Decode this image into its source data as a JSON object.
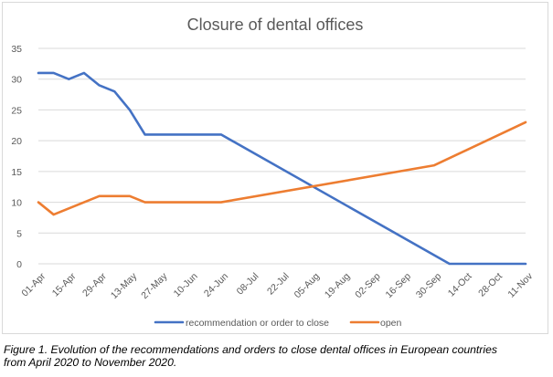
{
  "chart_data": {
    "type": "line",
    "title": "Closure of dental offices",
    "xlabel": "",
    "ylabel": "",
    "ylim": [
      0,
      35
    ],
    "yticks": [
      0,
      5,
      10,
      15,
      20,
      25,
      30,
      35
    ],
    "grid": true,
    "legend_position": "bottom",
    "x": [
      "01-Apr",
      "08-Apr",
      "15-Apr",
      "22-Apr",
      "29-Apr",
      "06-May",
      "13-May",
      "20-May",
      "27-May",
      "03-Jun",
      "10-Jun",
      "17-Jun",
      "24-Jun",
      "01-Jul",
      "08-Jul",
      "15-Jul",
      "22-Jul",
      "29-Jul",
      "05-Aug",
      "12-Aug",
      "19-Aug",
      "26-Aug",
      "02-Sep",
      "09-Sep",
      "16-Sep",
      "23-Sep",
      "30-Sep",
      "07-Oct",
      "14-Oct",
      "21-Oct",
      "28-Oct",
      "04-Nov",
      "11-Nov"
    ],
    "x_tick_labels": [
      "01-Apr",
      "15-Apr",
      "29-Apr",
      "13-May",
      "27-May",
      "10-Jun",
      "24-Jun",
      "08-Jul",
      "22-Jul",
      "05-Aug",
      "19-Aug",
      "02-Sep",
      "16-Sep",
      "30-Sep",
      "14-Oct",
      "28-Oct",
      "11-Nov"
    ],
    "series": [
      {
        "name": "recommendation or order to close",
        "color": "#4472C4",
        "values": [
          31,
          31,
          30,
          31,
          29,
          28,
          25,
          21,
          21,
          21,
          21,
          21,
          21,
          null,
          null,
          null,
          null,
          null,
          null,
          null,
          null,
          null,
          null,
          null,
          null,
          null,
          null,
          0,
          0,
          0,
          0,
          0,
          0
        ]
      },
      {
        "name": "open",
        "color": "#ED7D31",
        "values": [
          10,
          8,
          null,
          null,
          11,
          11,
          11,
          10,
          10,
          10,
          10,
          null,
          10,
          null,
          null,
          null,
          null,
          null,
          null,
          null,
          null,
          null,
          null,
          null,
          null,
          null,
          16,
          null,
          null,
          null,
          null,
          null,
          23
        ]
      }
    ]
  },
  "caption": {
    "line1": "Figure 1. Evolution of the recommendations and orders to close dental offices in European countries",
    "line2": "from April 2020 to November 2020."
  }
}
